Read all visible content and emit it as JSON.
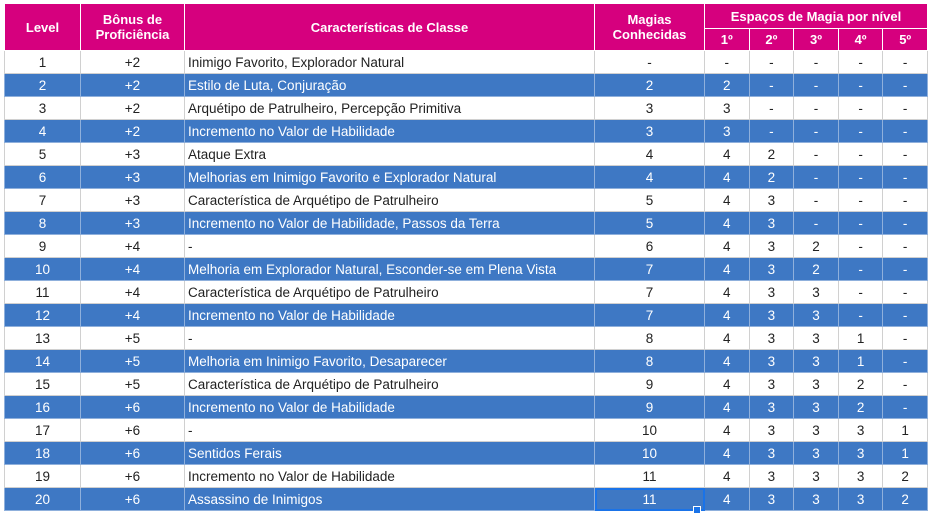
{
  "header": {
    "level": "Level",
    "proficiency": "Bônus de Proficiência",
    "features": "Características de Classe",
    "spells_known": "Magias Conhecidas",
    "spell_slots": "Espaços de Magia por nível",
    "slot_levels": [
      "1º",
      "2º",
      "3º",
      "4º",
      "5º"
    ]
  },
  "rows": [
    {
      "level": "1",
      "prof": "+2",
      "features": "Inimigo Favorito, Explorador Natural",
      "known": "-",
      "slots": [
        "-",
        "-",
        "-",
        "-",
        "-"
      ]
    },
    {
      "level": "2",
      "prof": "+2",
      "features": "Estilo de Luta, Conjuração",
      "known": "2",
      "slots": [
        "2",
        "-",
        "-",
        "-",
        "-"
      ]
    },
    {
      "level": "3",
      "prof": "+2",
      "features": "Arquétipo de Patrulheiro, Percepção Primitiva",
      "known": "3",
      "slots": [
        "3",
        "-",
        "-",
        "-",
        "-"
      ]
    },
    {
      "level": "4",
      "prof": "+2",
      "features": "Incremento no Valor de Habilidade",
      "known": "3",
      "slots": [
        "3",
        "-",
        "-",
        "-",
        "-"
      ]
    },
    {
      "level": "5",
      "prof": "+3",
      "features": "Ataque Extra",
      "known": "4",
      "slots": [
        "4",
        "2",
        "-",
        "-",
        "-"
      ]
    },
    {
      "level": "6",
      "prof": "+3",
      "features": "Melhorias em Inimigo Favorito e Explorador Natural",
      "known": "4",
      "slots": [
        "4",
        "2",
        "-",
        "-",
        "-"
      ]
    },
    {
      "level": "7",
      "prof": "+3",
      "features": "Característica de Arquétipo de Patrulheiro",
      "known": "5",
      "slots": [
        "4",
        "3",
        "-",
        "-",
        "-"
      ]
    },
    {
      "level": "8",
      "prof": "+3",
      "features": "Incremento no Valor de Habilidade, Passos da Terra",
      "known": "5",
      "slots": [
        "4",
        "3",
        "-",
        "-",
        "-"
      ]
    },
    {
      "level": "9",
      "prof": "+4",
      "features": "-",
      "known": "6",
      "slots": [
        "4",
        "3",
        "2",
        "-",
        "-"
      ]
    },
    {
      "level": "10",
      "prof": "+4",
      "features": "Melhoria em Explorador Natural, Esconder-se em Plena Vista",
      "known": "7",
      "slots": [
        "4",
        "3",
        "2",
        "-",
        "-"
      ]
    },
    {
      "level": "11",
      "prof": "+4",
      "features": "Característica de Arquétipo de Patrulheiro",
      "known": "7",
      "slots": [
        "4",
        "3",
        "3",
        "-",
        "-"
      ]
    },
    {
      "level": "12",
      "prof": "+4",
      "features": "Incremento no Valor de Habilidade",
      "known": "7",
      "slots": [
        "4",
        "3",
        "3",
        "-",
        "-"
      ]
    },
    {
      "level": "13",
      "prof": "+5",
      "features": "-",
      "known": "8",
      "slots": [
        "4",
        "3",
        "3",
        "1",
        "-"
      ]
    },
    {
      "level": "14",
      "prof": "+5",
      "features": "Melhoria em Inimigo Favorito, Desaparecer",
      "known": "8",
      "slots": [
        "4",
        "3",
        "3",
        "1",
        "-"
      ]
    },
    {
      "level": "15",
      "prof": "+5",
      "features": "Característica de Arquétipo de Patrulheiro",
      "known": "9",
      "slots": [
        "4",
        "3",
        "3",
        "2",
        "-"
      ]
    },
    {
      "level": "16",
      "prof": "+6",
      "features": "Incremento no Valor de Habilidade",
      "known": "9",
      "slots": [
        "4",
        "3",
        "3",
        "2",
        "-"
      ]
    },
    {
      "level": "17",
      "prof": "+6",
      "features": "-",
      "known": "10",
      "slots": [
        "4",
        "3",
        "3",
        "3",
        "1"
      ]
    },
    {
      "level": "18",
      "prof": "+6",
      "features": "Sentidos Ferais",
      "known": "10",
      "slots": [
        "4",
        "3",
        "3",
        "3",
        "1"
      ]
    },
    {
      "level": "19",
      "prof": "+6",
      "features": "Incremento no Valor de Habilidade",
      "known": "11",
      "slots": [
        "4",
        "3",
        "3",
        "3",
        "2"
      ]
    },
    {
      "level": "20",
      "prof": "+6",
      "features": "Assassino de Inimigos",
      "known": "11",
      "slots": [
        "4",
        "3",
        "3",
        "3",
        "2"
      ]
    }
  ],
  "colors": {
    "header_bg": "#d6007e",
    "stripe_bg": "#3e78c4",
    "selection": "#1a73e8"
  }
}
